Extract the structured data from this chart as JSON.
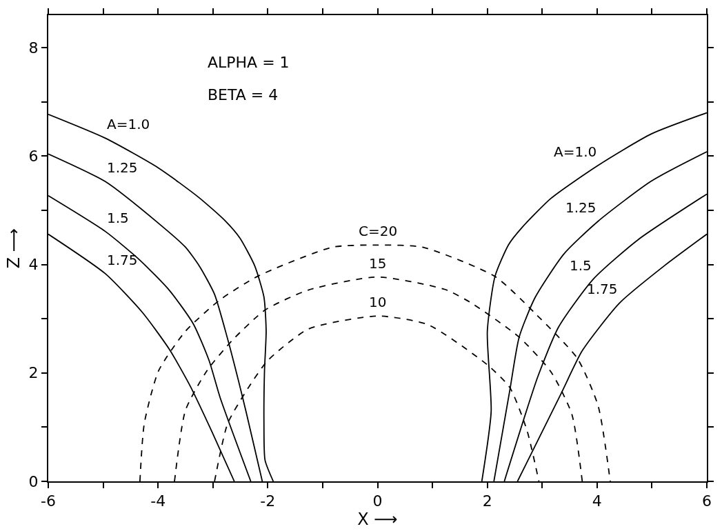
{
  "chart_data": {
    "type": "line",
    "xlabel": "X ⟶",
    "ylabel": "Z ⟶",
    "xlim": [
      -6,
      6
    ],
    "ylim": [
      0,
      8.6
    ],
    "xticks": [
      -6,
      {
        "value": -5,
        "label": null
      },
      -4,
      {
        "value": -3,
        "label": null
      },
      -2,
      {
        "value": -1,
        "label": null
      },
      0,
      {
        "value": 1,
        "label": null
      },
      2,
      {
        "value": 3,
        "label": null
      },
      4,
      {
        "value": 5,
        "label": null
      },
      6
    ],
    "yticks": [
      0,
      {
        "value": 1,
        "label": null
      },
      2,
      {
        "value": 3,
        "label": null
      },
      4,
      {
        "value": 5,
        "label": null
      },
      6,
      {
        "value": 7,
        "label": null
      },
      8
    ],
    "marker": "none",
    "series": [
      {
        "color": "#000000",
        "line_style": "solid",
        "x": [
          -6,
          -4.96,
          -3.99,
          -3.26,
          -2.78,
          -2.51,
          -2.24,
          -2.07,
          -2.03,
          -2.06,
          -2.07,
          -2.05,
          -1.9
        ],
        "values": [
          6.77,
          6.33,
          5.78,
          5.24,
          4.81,
          4.49,
          3.98,
          3.4,
          2.77,
          2.04,
          1.07,
          0.39,
          0
        ]
      },
      {
        "color": "#000000",
        "line_style": "solid",
        "x": [
          -6,
          -4.96,
          -3.99,
          -3.5,
          -3.24,
          -2.97,
          -2.73,
          -2.53,
          -2.39,
          -2.1
        ],
        "values": [
          6.04,
          5.53,
          4.76,
          4.32,
          3.96,
          3.45,
          2.62,
          1.84,
          1.26,
          0
        ]
      },
      {
        "color": "#000000",
        "line_style": "solid",
        "x": [
          -6,
          -4.96,
          -4.33,
          -3.79,
          -3.36,
          -3.07,
          -2.87,
          -2.31
        ],
        "values": [
          5.27,
          4.61,
          4.08,
          3.52,
          2.91,
          2.23,
          1.55,
          0
        ]
      },
      {
        "color": "#000000",
        "line_style": "solid",
        "x": [
          -6,
          -4.96,
          -4.28,
          -3.79,
          -3.41,
          -3.02,
          -2.61
        ],
        "values": [
          4.56,
          3.83,
          3.11,
          2.43,
          1.75,
          0.92,
          0
        ]
      },
      {
        "color": "#000000",
        "line_style": "solid",
        "x": [
          1.9,
          2.07,
          2.0,
          2.14,
          2.39,
          2.63,
          3.16,
          4.02,
          4.99,
          6
        ],
        "values": [
          0,
          1.29,
          2.76,
          3.78,
          4.37,
          4.68,
          5.22,
          5.83,
          6.41,
          6.8
        ]
      },
      {
        "color": "#000000",
        "line_style": "solid",
        "x": [
          2.12,
          2.41,
          2.58,
          2.87,
          3.4,
          4.02,
          4.99,
          6
        ],
        "values": [
          0,
          1.68,
          2.66,
          3.39,
          4.2,
          4.8,
          5.54,
          6.08
        ]
      },
      {
        "color": "#000000",
        "line_style": "solid",
        "x": [
          2.31,
          2.92,
          3.3,
          3.93,
          4.75,
          6
        ],
        "values": [
          0,
          1.93,
          2.85,
          3.73,
          4.46,
          5.3
        ]
      },
      {
        "color": "#000000",
        "line_style": "solid",
        "x": [
          2.55,
          3.35,
          3.73,
          4.41,
          5.23,
          6
        ],
        "values": [
          0,
          1.63,
          2.41,
          3.29,
          3.98,
          4.56
        ]
      },
      {
        "color": "#000000",
        "line_style": "dashed",
        "x": [
          -4.33,
          -4.25,
          -3.99,
          -3.5,
          -2.87,
          -2.17,
          -0.82,
          0,
          0.82,
          2.14,
          2.87,
          3.64,
          4.02,
          4.24
        ],
        "values": [
          0,
          1.07,
          2.04,
          2.77,
          3.35,
          3.79,
          4.32,
          4.36,
          4.32,
          3.78,
          3.1,
          2.27,
          1.39,
          0
        ]
      },
      {
        "color": "#000000",
        "line_style": "dashed",
        "x": [
          -3.7,
          -3.5,
          -3.11,
          -2.63,
          -2.05,
          -1.26,
          0,
          1.23,
          1.71,
          2.58,
          3.16,
          3.54,
          3.73
        ],
        "values": [
          0,
          1.31,
          2.04,
          2.62,
          3.16,
          3.53,
          3.77,
          3.54,
          3.29,
          2.66,
          2.02,
          1.24,
          0
        ]
      },
      {
        "color": "#000000",
        "line_style": "dashed",
        "x": [
          -2.97,
          -2.73,
          -2.34,
          -2.0,
          -1.26,
          0,
          0.92,
          2.0,
          2.41,
          2.72,
          2.94
        ],
        "values": [
          0,
          1.07,
          1.75,
          2.23,
          2.81,
          3.05,
          2.89,
          2.15,
          1.73,
          0.95,
          0
        ]
      }
    ],
    "annotations": [
      "ALPHA = 1",
      "BETA = 4",
      {
        "text": "A=1.0",
        "x": -4.96,
        "y": 6.33
      },
      {
        "text": "1.25",
        "x": -4.96,
        "y": 5.53
      },
      {
        "text": "1.5",
        "x": -4.96,
        "y": 4.61
      },
      {
        "text": "1.75",
        "x": -4.96,
        "y": 3.83
      },
      {
        "text": "A=1.0",
        "x": 4.02,
        "y": 5.83
      },
      {
        "text": "1.25",
        "x": 4.02,
        "y": 4.8
      },
      {
        "text": "1.5",
        "x": 3.93,
        "y": 3.73
      },
      {
        "text": "1.75",
        "x": 4.41,
        "y": 3.29
      },
      {
        "text": "C=20",
        "x": 0,
        "y": 4.36
      },
      {
        "text": "15",
        "x": 0,
        "y": 3.77
      },
      {
        "text": "10",
        "x": 0,
        "y": 3.05
      }
    ]
  }
}
